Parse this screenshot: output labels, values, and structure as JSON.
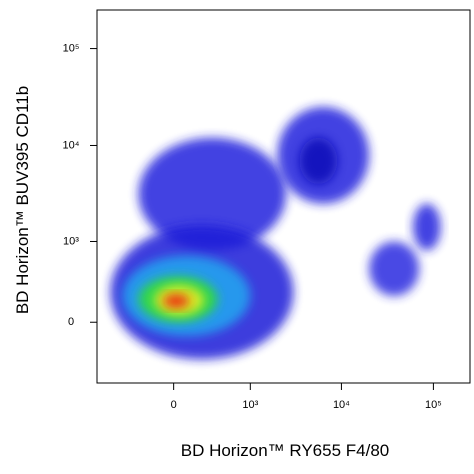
{
  "chart_data": {
    "type": "density",
    "x_label": "BD Horizon™ RY655 F4/80",
    "y_label": "BD Horizon™ BUV395  CD11b",
    "scale": "biexponential",
    "xlim": [
      -1000,
      250000
    ],
    "ylim": [
      -600,
      250000
    ],
    "xticks": [
      0,
      {
        "value": 1000,
        "label": "10³"
      },
      {
        "value": 10000,
        "label": "10⁴"
      },
      {
        "value": 100000,
        "label": "10⁵"
      }
    ],
    "yticks": [
      0,
      {
        "value": 1000,
        "label": "10³"
      },
      {
        "value": 10000,
        "label": "10⁴"
      },
      {
        "value": 100000,
        "label": "10⁵"
      }
    ],
    "populations": [
      {
        "x_range": [
          -300,
          2500
        ],
        "y_range": [
          800,
          12000
        ],
        "color": "#2222dd"
      },
      {
        "x_range": [
          2000,
          20000
        ],
        "y_range": [
          2500,
          25000
        ],
        "color": "#2222dd"
      },
      {
        "x_range": [
          3500,
          9000
        ],
        "y_range": [
          4000,
          12000
        ],
        "color": "#1010b8"
      },
      {
        "x_range": [
          60000,
          120000
        ],
        "y_range": [
          800,
          2500
        ],
        "color": "#2222dd"
      },
      {
        "x_range": [
          20000,
          70000
        ],
        "y_range": [
          200,
          1000
        ],
        "color": "#2a2ae0"
      },
      {
        "x_range": [
          -700,
          3000
        ],
        "y_range": [
          -300,
          1500
        ],
        "color": "#1e1ed8"
      },
      {
        "x_range": [
          -500,
          1000
        ],
        "y_range": [
          -100,
          700
        ],
        "color": "#20a8f0"
      },
      {
        "x_range": [
          -300,
          400
        ],
        "y_range": [
          0,
          400
        ],
        "color": "#30e030"
      },
      {
        "x_range": [
          -150,
          250
        ],
        "y_range": [
          50,
          300
        ],
        "color": "#f0f020"
      },
      {
        "x_range": [
          -80,
          120
        ],
        "y_range": [
          100,
          220
        ],
        "color": "#f02010"
      }
    ]
  }
}
